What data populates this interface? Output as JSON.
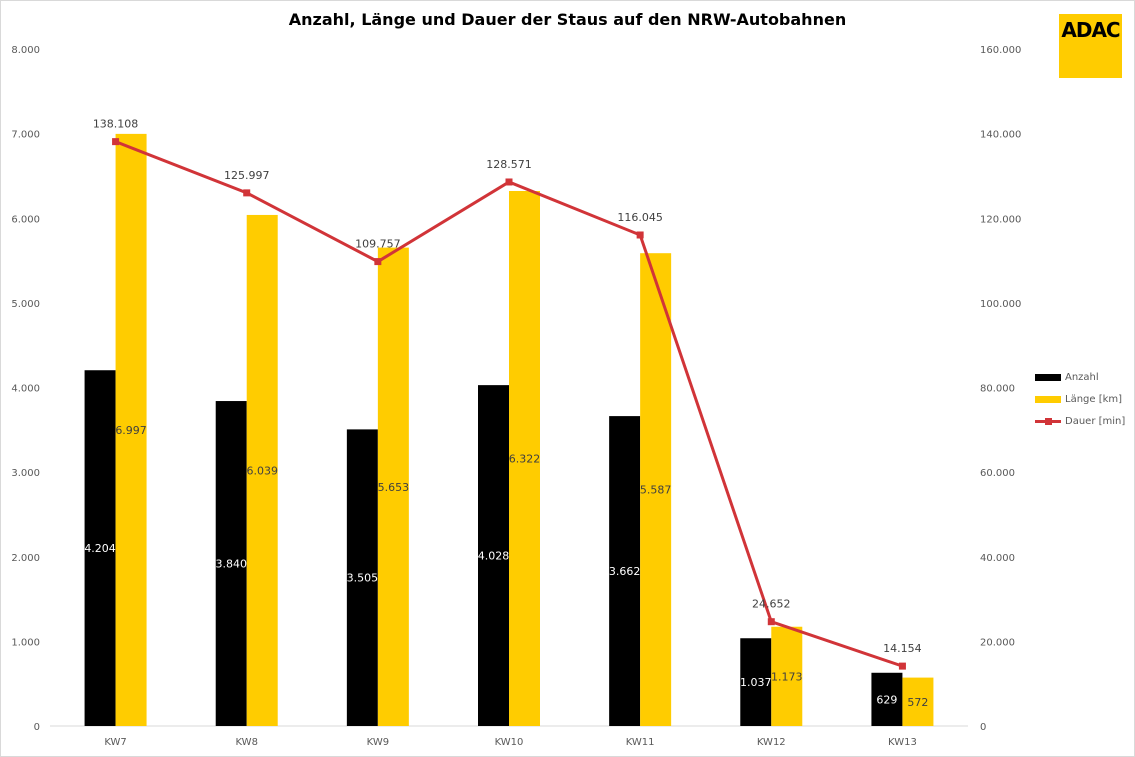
{
  "chart_data": {
    "type": "bar",
    "title": "Anzahl, Länge und Dauer der Staus auf den NRW-Autobahnen",
    "categories": [
      "KW7",
      "KW8",
      "KW9",
      "KW10",
      "KW11",
      "KW12",
      "KW13"
    ],
    "series": [
      {
        "name": "Anzahl",
        "type": "bar",
        "axis": "left",
        "color": "#000000",
        "values": [
          4204,
          3840,
          3505,
          4028,
          3662,
          1037,
          629
        ],
        "labels": [
          "4.204",
          "3.840",
          "3.505",
          "4.028",
          "3.662",
          "1.037",
          "629"
        ]
      },
      {
        "name": "Länge [km]",
        "type": "bar",
        "axis": "left",
        "color": "#ffcc00",
        "values": [
          6997,
          6039,
          5653,
          6322,
          5587,
          1173,
          572
        ],
        "labels": [
          "6.997",
          "6.039",
          "5.653",
          "6.322",
          "5.587",
          "1.173",
          "572"
        ]
      },
      {
        "name": "Dauer [min]",
        "type": "line",
        "axis": "right",
        "color": "#d13438",
        "values": [
          138108,
          125997,
          109757,
          128571,
          116045,
          24652,
          14154
        ],
        "labels": [
          "138.108",
          "125.997",
          "109.757",
          "128.571",
          "116.045",
          "24.652",
          "14.154"
        ]
      }
    ],
    "ylim_left": [
      0,
      8000
    ],
    "ylim_right": [
      0,
      160000
    ],
    "yticks_left": [
      "0",
      "1.000",
      "2.000",
      "3.000",
      "4.000",
      "5.000",
      "6.000",
      "7.000",
      "8.000"
    ],
    "yticks_right": [
      "0",
      "20.000",
      "40.000",
      "60.000",
      "80.000",
      "100.000",
      "120.000",
      "140.000",
      "160.000"
    ],
    "grid": false,
    "legend_position": "right"
  },
  "logo": {
    "text": "ADAC",
    "color": "#ffcc00"
  }
}
